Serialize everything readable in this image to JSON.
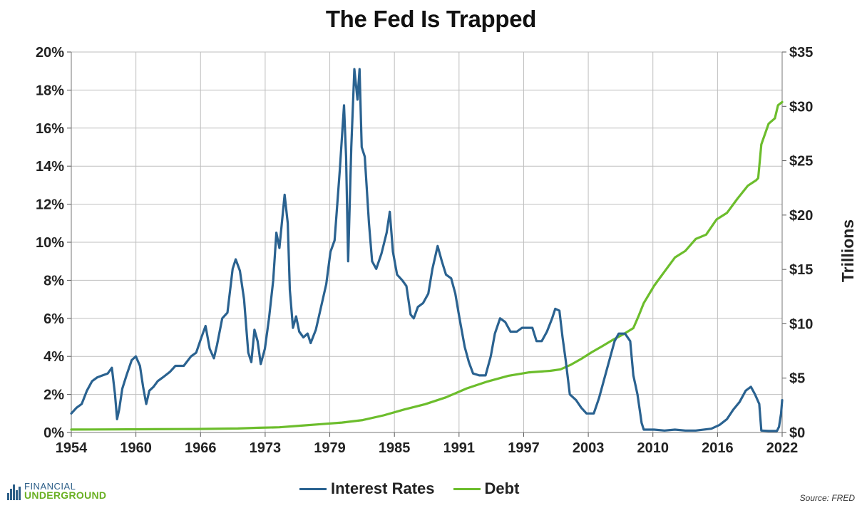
{
  "colors": {
    "rates": "#2a6290",
    "debt": "#6cbd2c",
    "grid": "#bfbfbf"
  },
  "logo": {
    "top": "FINANCIAL",
    "bottom": "UNDERGROUND",
    "icon": "bar-chart-logo-icon"
  },
  "source": "Source: FRED",
  "chart_data": {
    "type": "line",
    "title": "The Fed Is Trapped",
    "x_ticks": [
      "1954",
      "1960",
      "1966",
      "1973",
      "1979",
      "1985",
      "1991",
      "1997",
      "2003",
      "2010",
      "2016",
      "2022"
    ],
    "xlim": [
      1954,
      2022.3
    ],
    "y_left": {
      "ticks": [
        "0%",
        "2%",
        "4%",
        "6%",
        "8%",
        "10%",
        "12%",
        "14%",
        "16%",
        "18%",
        "20%"
      ],
      "lim": [
        0,
        20
      ],
      "unit": "%"
    },
    "y_right": {
      "label": "Trillions",
      "ticks": [
        "$0",
        "$5",
        "$10",
        "$15",
        "$20",
        "$25",
        "$30",
        "$35"
      ],
      "lim": [
        0,
        35
      ]
    },
    "grid": true,
    "legend": "bottom-center",
    "series": [
      {
        "name": "Interest Rates",
        "axis": "left",
        "points": [
          [
            1954.0,
            1.0
          ],
          [
            1954.5,
            1.3
          ],
          [
            1955.0,
            1.5
          ],
          [
            1955.5,
            2.2
          ],
          [
            1956.0,
            2.7
          ],
          [
            1956.5,
            2.9
          ],
          [
            1957.0,
            3.0
          ],
          [
            1957.5,
            3.1
          ],
          [
            1957.9,
            3.4
          ],
          [
            1958.2,
            2.0
          ],
          [
            1958.4,
            0.7
          ],
          [
            1958.6,
            1.2
          ],
          [
            1958.9,
            2.3
          ],
          [
            1959.3,
            3.0
          ],
          [
            1959.8,
            3.8
          ],
          [
            1960.2,
            4.0
          ],
          [
            1960.6,
            3.5
          ],
          [
            1960.9,
            2.4
          ],
          [
            1961.2,
            1.5
          ],
          [
            1961.5,
            2.2
          ],
          [
            1961.9,
            2.4
          ],
          [
            1962.3,
            2.7
          ],
          [
            1962.8,
            2.9
          ],
          [
            1963.5,
            3.2
          ],
          [
            1964.0,
            3.5
          ],
          [
            1964.8,
            3.5
          ],
          [
            1965.5,
            4.0
          ],
          [
            1966.0,
            4.2
          ],
          [
            1966.5,
            5.0
          ],
          [
            1966.9,
            5.6
          ],
          [
            1967.3,
            4.4
          ],
          [
            1967.7,
            3.9
          ],
          [
            1968.0,
            4.6
          ],
          [
            1968.5,
            6.0
          ],
          [
            1969.0,
            6.3
          ],
          [
            1969.5,
            8.6
          ],
          [
            1969.8,
            9.1
          ],
          [
            1970.2,
            8.5
          ],
          [
            1970.6,
            7.0
          ],
          [
            1971.0,
            4.2
          ],
          [
            1971.3,
            3.7
          ],
          [
            1971.6,
            5.4
          ],
          [
            1971.9,
            4.8
          ],
          [
            1972.2,
            3.6
          ],
          [
            1972.6,
            4.4
          ],
          [
            1973.0,
            6.0
          ],
          [
            1973.4,
            8.0
          ],
          [
            1973.7,
            10.5
          ],
          [
            1974.0,
            9.7
          ],
          [
            1974.5,
            12.5
          ],
          [
            1974.8,
            11.0
          ],
          [
            1975.0,
            7.5
          ],
          [
            1975.3,
            5.5
          ],
          [
            1975.6,
            6.1
          ],
          [
            1975.9,
            5.3
          ],
          [
            1976.3,
            5.0
          ],
          [
            1976.7,
            5.2
          ],
          [
            1977.0,
            4.7
          ],
          [
            1977.5,
            5.4
          ],
          [
            1978.0,
            6.6
          ],
          [
            1978.5,
            7.8
          ],
          [
            1978.9,
            9.5
          ],
          [
            1979.3,
            10.1
          ],
          [
            1979.8,
            13.8
          ],
          [
            1980.2,
            17.2
          ],
          [
            1980.4,
            14.5
          ],
          [
            1980.6,
            9.0
          ],
          [
            1980.9,
            15.0
          ],
          [
            1981.2,
            19.1
          ],
          [
            1981.5,
            17.5
          ],
          [
            1981.7,
            19.1
          ],
          [
            1981.9,
            15.0
          ],
          [
            1982.2,
            14.5
          ],
          [
            1982.6,
            11.0
          ],
          [
            1982.9,
            9.0
          ],
          [
            1983.3,
            8.6
          ],
          [
            1983.8,
            9.4
          ],
          [
            1984.3,
            10.5
          ],
          [
            1984.6,
            11.6
          ],
          [
            1984.9,
            9.5
          ],
          [
            1985.3,
            8.3
          ],
          [
            1985.8,
            8.0
          ],
          [
            1986.2,
            7.7
          ],
          [
            1986.6,
            6.2
          ],
          [
            1986.9,
            6.0
          ],
          [
            1987.3,
            6.6
          ],
          [
            1987.8,
            6.8
          ],
          [
            1988.3,
            7.3
          ],
          [
            1988.7,
            8.6
          ],
          [
            1989.2,
            9.8
          ],
          [
            1989.6,
            9.0
          ],
          [
            1990.0,
            8.3
          ],
          [
            1990.5,
            8.1
          ],
          [
            1990.9,
            7.3
          ],
          [
            1991.3,
            6.0
          ],
          [
            1991.8,
            4.5
          ],
          [
            1992.2,
            3.7
          ],
          [
            1992.6,
            3.1
          ],
          [
            1993.2,
            3.0
          ],
          [
            1993.8,
            3.0
          ],
          [
            1994.3,
            4.0
          ],
          [
            1994.7,
            5.2
          ],
          [
            1995.2,
            6.0
          ],
          [
            1995.7,
            5.8
          ],
          [
            1996.2,
            5.3
          ],
          [
            1996.8,
            5.3
          ],
          [
            1997.3,
            5.5
          ],
          [
            1997.8,
            5.5
          ],
          [
            1998.3,
            5.5
          ],
          [
            1998.7,
            4.8
          ],
          [
            1999.2,
            4.8
          ],
          [
            1999.7,
            5.3
          ],
          [
            2000.2,
            6.0
          ],
          [
            2000.5,
            6.5
          ],
          [
            2000.9,
            6.4
          ],
          [
            2001.2,
            5.0
          ],
          [
            2001.5,
            3.8
          ],
          [
            2001.9,
            2.0
          ],
          [
            2002.5,
            1.7
          ],
          [
            2003.0,
            1.3
          ],
          [
            2003.5,
            1.0
          ],
          [
            2004.2,
            1.0
          ],
          [
            2004.7,
            1.8
          ],
          [
            2005.2,
            2.8
          ],
          [
            2005.7,
            3.8
          ],
          [
            2006.2,
            4.8
          ],
          [
            2006.6,
            5.2
          ],
          [
            2007.2,
            5.2
          ],
          [
            2007.7,
            4.8
          ],
          [
            2008.0,
            3.0
          ],
          [
            2008.4,
            2.0
          ],
          [
            2008.8,
            0.5
          ],
          [
            2009.0,
            0.15
          ],
          [
            2010.0,
            0.15
          ],
          [
            2011.0,
            0.1
          ],
          [
            2012.0,
            0.15
          ],
          [
            2013.0,
            0.1
          ],
          [
            2014.0,
            0.1
          ],
          [
            2015.5,
            0.2
          ],
          [
            2016.3,
            0.4
          ],
          [
            2017.0,
            0.7
          ],
          [
            2017.6,
            1.2
          ],
          [
            2018.2,
            1.6
          ],
          [
            2018.8,
            2.2
          ],
          [
            2019.3,
            2.4
          ],
          [
            2019.7,
            2.0
          ],
          [
            2020.1,
            1.5
          ],
          [
            2020.3,
            0.1
          ],
          [
            2021.0,
            0.08
          ],
          [
            2021.8,
            0.08
          ],
          [
            2022.0,
            0.3
          ],
          [
            2022.2,
            1.0
          ],
          [
            2022.3,
            1.7
          ]
        ]
      },
      {
        "name": "Debt",
        "axis": "right",
        "points": [
          [
            1954.0,
            0.27
          ],
          [
            1958.0,
            0.28
          ],
          [
            1962.0,
            0.3
          ],
          [
            1966.0,
            0.32
          ],
          [
            1970.0,
            0.37
          ],
          [
            1972.0,
            0.43
          ],
          [
            1974.0,
            0.48
          ],
          [
            1976.0,
            0.62
          ],
          [
            1978.0,
            0.77
          ],
          [
            1980.0,
            0.91
          ],
          [
            1982.0,
            1.14
          ],
          [
            1984.0,
            1.57
          ],
          [
            1986.0,
            2.12
          ],
          [
            1988.0,
            2.6
          ],
          [
            1990.0,
            3.23
          ],
          [
            1992.0,
            4.06
          ],
          [
            1994.0,
            4.69
          ],
          [
            1996.0,
            5.22
          ],
          [
            1998.0,
            5.53
          ],
          [
            2000.0,
            5.67
          ],
          [
            2001.0,
            5.81
          ],
          [
            2002.0,
            6.23
          ],
          [
            2003.0,
            6.78
          ],
          [
            2004.0,
            7.38
          ],
          [
            2005.0,
            7.93
          ],
          [
            2006.0,
            8.51
          ],
          [
            2007.0,
            9.01
          ],
          [
            2008.0,
            9.6
          ],
          [
            2008.5,
            10.7
          ],
          [
            2009.0,
            11.9
          ],
          [
            2010.0,
            13.5
          ],
          [
            2011.0,
            14.8
          ],
          [
            2012.0,
            16.1
          ],
          [
            2013.0,
            16.7
          ],
          [
            2014.0,
            17.8
          ],
          [
            2015.0,
            18.2
          ],
          [
            2016.0,
            19.6
          ],
          [
            2017.0,
            20.2
          ],
          [
            2018.0,
            21.5
          ],
          [
            2019.0,
            22.7
          ],
          [
            2019.8,
            23.2
          ],
          [
            2020.0,
            23.4
          ],
          [
            2020.3,
            26.5
          ],
          [
            2021.0,
            28.4
          ],
          [
            2021.6,
            28.9
          ],
          [
            2021.9,
            30.1
          ],
          [
            2022.3,
            30.4
          ]
        ]
      }
    ]
  },
  "legend_items": [
    {
      "label": "Interest Rates"
    },
    {
      "label": "Debt"
    }
  ]
}
